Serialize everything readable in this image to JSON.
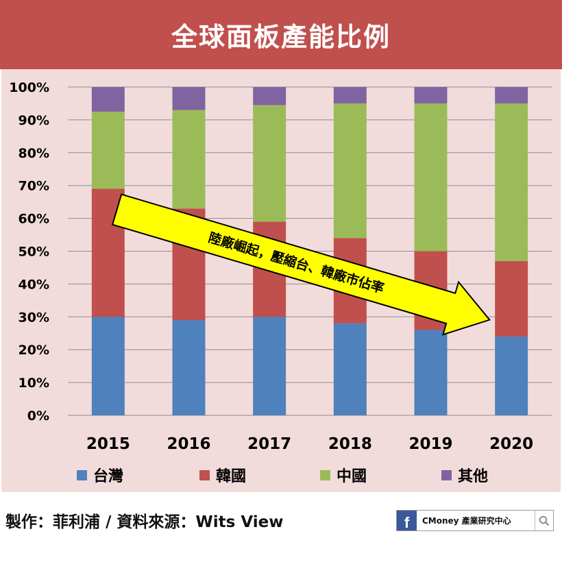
{
  "title": "全球面板產能比例",
  "source": "製作：菲利浦 / 資料來源：Wits View",
  "brand": {
    "name": "CMoney 產業研究中心",
    "fb_letter": "f",
    "icons": [
      "facebook-icon",
      "search-icon"
    ]
  },
  "colors": {
    "title_bg": "#c0504d",
    "chart_bg": "#f2dcdb",
    "taiwan": "#4f81bd",
    "korea": "#c0504d",
    "china": "#9bbb59",
    "other": "#8064a2",
    "arrow": "#ffff00"
  },
  "annotation": "陸廠崛起，壓縮台、韓廠市佔率",
  "chart_data": {
    "type": "bar",
    "stacked": true,
    "percent": true,
    "categories": [
      "2015",
      "2016",
      "2017",
      "2018",
      "2019",
      "2020"
    ],
    "series": [
      {
        "name": "台灣",
        "values": [
          30,
          29,
          30,
          28,
          26,
          24
        ]
      },
      {
        "name": "韓國",
        "values": [
          39,
          34,
          29,
          26,
          24,
          23
        ]
      },
      {
        "name": "中國",
        "values": [
          23.5,
          30,
          35.5,
          41,
          45,
          48
        ]
      },
      {
        "name": "其他",
        "values": [
          7.5,
          7,
          5.5,
          5,
          5,
          5
        ]
      }
    ],
    "yticks": [
      "0%",
      "10%",
      "20%",
      "30%",
      "40%",
      "50%",
      "60%",
      "70%",
      "80%",
      "90%",
      "100%"
    ],
    "ylim": [
      0,
      100
    ],
    "grid": true,
    "legend_position": "bottom"
  }
}
